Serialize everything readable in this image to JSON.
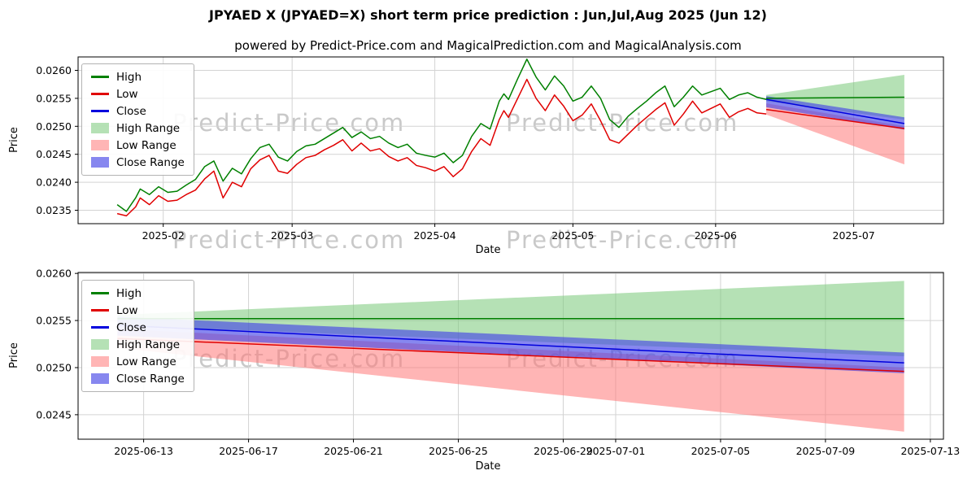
{
  "page": {
    "title": "JPYAED X (JPYAED=X) short term price prediction : Jun,Jul,Aug 2025 (Jun 12)",
    "subtitle": "powered by Predict-Price.com and MagicalPrediction.com and MagicalAnalysis.com",
    "watermark": "Predict-Price.com"
  },
  "colors": {
    "high": "#008000",
    "low": "#e00000",
    "close": "#0000dd",
    "high_range": "rgba(120,200,120,0.55)",
    "low_range": "rgba(255,120,120,0.55)",
    "close_range": "rgba(70,70,230,0.65)",
    "grid": "#d3d3d3",
    "frame": "#000000",
    "watermark": "#c9c9c9"
  },
  "legend": [
    {
      "label": "High",
      "type": "line",
      "color": "high"
    },
    {
      "label": "Low",
      "type": "line",
      "color": "low"
    },
    {
      "label": "Close",
      "type": "line",
      "color": "close"
    },
    {
      "label": "High Range",
      "type": "patch",
      "color": "high_range"
    },
    {
      "label": "Low Range",
      "type": "patch",
      "color": "low_range"
    },
    {
      "label": "Close Range",
      "type": "patch",
      "color": "close_range"
    }
  ],
  "chart_data": [
    {
      "type": "line",
      "title": "",
      "xlabel": "Date",
      "ylabel": "Price",
      "grid": true,
      "legend_position": "upper left",
      "x_min": "2025-01-13T12:00:00Z",
      "x_max": "2025-07-20T12:00:00Z",
      "y_min": 0.02326,
      "y_max": 0.02624,
      "x_ticks": [
        {
          "at": "2025-02-01",
          "label": "2025-02"
        },
        {
          "at": "2025-03-01",
          "label": "2025-03"
        },
        {
          "at": "2025-04-01",
          "label": "2025-04"
        },
        {
          "at": "2025-05-01",
          "label": "2025-05"
        },
        {
          "at": "2025-06-01",
          "label": "2025-06"
        },
        {
          "at": "2025-07-01",
          "label": "2025-07"
        }
      ],
      "y_ticks": [
        {
          "at": 0.0235,
          "label": "0.0235"
        },
        {
          "at": 0.024,
          "label": "0.0240"
        },
        {
          "at": 0.0245,
          "label": "0.0245"
        },
        {
          "at": 0.025,
          "label": "0.0250"
        },
        {
          "at": 0.0255,
          "label": "0.0255"
        },
        {
          "at": 0.026,
          "label": "0.0260"
        }
      ],
      "hist_dates": [
        "2025-01-22",
        "2025-01-24",
        "2025-01-26",
        "2025-01-27",
        "2025-01-29",
        "2025-01-31",
        "2025-02-02",
        "2025-02-04",
        "2025-02-06",
        "2025-02-08",
        "2025-02-10",
        "2025-02-12",
        "2025-02-14",
        "2025-02-16",
        "2025-02-18",
        "2025-02-20",
        "2025-02-22",
        "2025-02-24",
        "2025-02-26",
        "2025-02-28",
        "2025-03-02",
        "2025-03-04",
        "2025-03-06",
        "2025-03-08",
        "2025-03-10",
        "2025-03-12",
        "2025-03-14",
        "2025-03-16",
        "2025-03-18",
        "2025-03-20",
        "2025-03-22",
        "2025-03-24",
        "2025-03-26",
        "2025-03-28",
        "2025-03-30",
        "2025-04-01",
        "2025-04-03",
        "2025-04-05",
        "2025-04-07",
        "2025-04-09",
        "2025-04-11",
        "2025-04-13",
        "2025-04-15",
        "2025-04-16",
        "2025-04-17",
        "2025-04-19",
        "2025-04-21",
        "2025-04-23",
        "2025-04-25",
        "2025-04-27",
        "2025-04-29",
        "2025-05-01",
        "2025-05-03",
        "2025-05-05",
        "2025-05-07",
        "2025-05-09",
        "2025-05-11",
        "2025-05-13",
        "2025-05-15",
        "2025-05-17",
        "2025-05-19",
        "2025-05-21",
        "2025-05-23",
        "2025-05-25",
        "2025-05-27",
        "2025-05-29",
        "2025-05-31",
        "2025-06-02",
        "2025-06-04",
        "2025-06-06",
        "2025-06-08",
        "2025-06-10",
        "2025-06-12"
      ],
      "bands": [
        {
          "name": "High Range",
          "color": "high_range",
          "x": [
            "2025-06-12",
            "2025-07-12"
          ],
          "upper": [
            0.02556,
            0.02592
          ],
          "lower": [
            0.02545,
            0.02512
          ]
        },
        {
          "name": "Low Range",
          "color": "low_range",
          "x": [
            "2025-06-12",
            "2025-07-12"
          ],
          "upper": [
            0.02541,
            0.025
          ],
          "lower": [
            0.02521,
            0.02432
          ]
        },
        {
          "name": "Close Range",
          "color": "close_range",
          "x": [
            "2025-06-12",
            "2025-07-12"
          ],
          "upper": [
            0.02554,
            0.02516
          ],
          "lower": [
            0.02534,
            0.02494
          ]
        }
      ],
      "lines": [
        {
          "name": "High",
          "color": "high",
          "x_key": "hist_dates",
          "y": [
            0.0236,
            0.02348,
            0.02372,
            0.02388,
            0.02378,
            0.02392,
            0.02382,
            0.02384,
            0.02395,
            0.02405,
            0.02428,
            0.02438,
            0.02402,
            0.02425,
            0.02415,
            0.02442,
            0.02462,
            0.02468,
            0.02445,
            0.02438,
            0.02455,
            0.02465,
            0.02468,
            0.02478,
            0.02488,
            0.02498,
            0.0248,
            0.0249,
            0.02478,
            0.02482,
            0.0247,
            0.02462,
            0.02468,
            0.02452,
            0.02448,
            0.02445,
            0.02452,
            0.02435,
            0.02448,
            0.02482,
            0.02505,
            0.02495,
            0.02545,
            0.02558,
            0.02548,
            0.02585,
            0.0262,
            0.02588,
            0.02565,
            0.0259,
            0.02572,
            0.02545,
            0.02552,
            0.02572,
            0.0255,
            0.02512,
            0.02498,
            0.02518,
            0.02532,
            0.02545,
            0.0256,
            0.02572,
            0.02535,
            0.02552,
            0.02572,
            0.02556,
            0.02562,
            0.02568,
            0.02548,
            0.02556,
            0.0256,
            0.02552,
            0.02548
          ]
        },
        {
          "name": "Low",
          "color": "low",
          "x_key": "hist_dates",
          "y": [
            0.02344,
            0.0234,
            0.02356,
            0.02372,
            0.0236,
            0.02376,
            0.02366,
            0.02368,
            0.02378,
            0.02386,
            0.02406,
            0.0242,
            0.02372,
            0.024,
            0.02392,
            0.02424,
            0.0244,
            0.02448,
            0.0242,
            0.02416,
            0.02432,
            0.02444,
            0.02448,
            0.02458,
            0.02466,
            0.02476,
            0.02456,
            0.0247,
            0.02456,
            0.0246,
            0.02446,
            0.02438,
            0.02444,
            0.0243,
            0.02426,
            0.0242,
            0.02428,
            0.0241,
            0.02424,
            0.02455,
            0.02478,
            0.02466,
            0.02512,
            0.02528,
            0.02516,
            0.0255,
            0.02584,
            0.0255,
            0.02528,
            0.02556,
            0.02536,
            0.0251,
            0.0252,
            0.0254,
            0.0251,
            0.02476,
            0.0247,
            0.02486,
            0.02502,
            0.02516,
            0.0253,
            0.02542,
            0.02502,
            0.02522,
            0.02545,
            0.02524,
            0.02532,
            0.0254,
            0.02516,
            0.02526,
            0.02532,
            0.02524,
            0.02522
          ]
        },
        {
          "name": "High forecast",
          "color": "high",
          "x": [
            "2025-06-12",
            "2025-07-12"
          ],
          "y": [
            0.0255,
            0.02552
          ]
        },
        {
          "name": "Close forecast",
          "color": "close",
          "x": [
            "2025-06-12",
            "2025-07-12"
          ],
          "y": [
            0.02548,
            0.02505
          ]
        },
        {
          "name": "Low forecast",
          "color": "low",
          "x": [
            "2025-06-12",
            "2025-07-12"
          ],
          "y": [
            0.0253,
            0.02496
          ]
        }
      ]
    },
    {
      "type": "line",
      "title": "",
      "xlabel": "Date",
      "ylabel": "Price",
      "grid": true,
      "legend_position": "upper left",
      "x_min": "2025-06-10T12:00:00Z",
      "x_max": "2025-07-13T12:00:00Z",
      "y_min": 0.02424,
      "y_max": 0.02601,
      "x_ticks": [
        {
          "at": "2025-06-13",
          "label": "2025-06-13"
        },
        {
          "at": "2025-06-17",
          "label": "2025-06-17"
        },
        {
          "at": "2025-06-21",
          "label": "2025-06-21"
        },
        {
          "at": "2025-06-25",
          "label": "2025-06-25"
        },
        {
          "at": "2025-06-29",
          "label": "2025-06-29"
        },
        {
          "at": "2025-07-01",
          "label": "2025-07-01"
        },
        {
          "at": "2025-07-05",
          "label": "2025-07-05"
        },
        {
          "at": "2025-07-09",
          "label": "2025-07-09"
        },
        {
          "at": "2025-07-13",
          "label": "2025-07-13"
        }
      ],
      "y_ticks": [
        {
          "at": 0.0245,
          "label": "0.0245"
        },
        {
          "at": 0.025,
          "label": "0.0250"
        },
        {
          "at": 0.0255,
          "label": "0.0255"
        },
        {
          "at": 0.026,
          "label": "0.0260"
        }
      ],
      "bands": [
        {
          "name": "High Range",
          "color": "high_range",
          "x": [
            "2025-06-12",
            "2025-07-12"
          ],
          "upper": [
            0.02556,
            0.02592
          ],
          "lower": [
            0.02545,
            0.02512
          ]
        },
        {
          "name": "Low Range",
          "color": "low_range",
          "x": [
            "2025-06-12",
            "2025-07-12"
          ],
          "upper": [
            0.02541,
            0.025
          ],
          "lower": [
            0.02521,
            0.02432
          ]
        },
        {
          "name": "Close Range",
          "color": "close_range",
          "x": [
            "2025-06-12",
            "2025-07-12"
          ],
          "upper": [
            0.02554,
            0.02516
          ],
          "lower": [
            0.02534,
            0.02494
          ]
        }
      ],
      "lines": [
        {
          "name": "High",
          "color": "high",
          "x": [
            "2025-06-12",
            "2025-07-12"
          ],
          "y": [
            0.02552,
            0.02552
          ]
        },
        {
          "name": "Close",
          "color": "close",
          "x": [
            "2025-06-12",
            "2025-07-12"
          ],
          "y": [
            0.02545,
            0.02505
          ]
        },
        {
          "name": "Low",
          "color": "low",
          "x": [
            "2025-06-12",
            "2025-07-12"
          ],
          "y": [
            0.02531,
            0.02496
          ]
        }
      ]
    }
  ]
}
